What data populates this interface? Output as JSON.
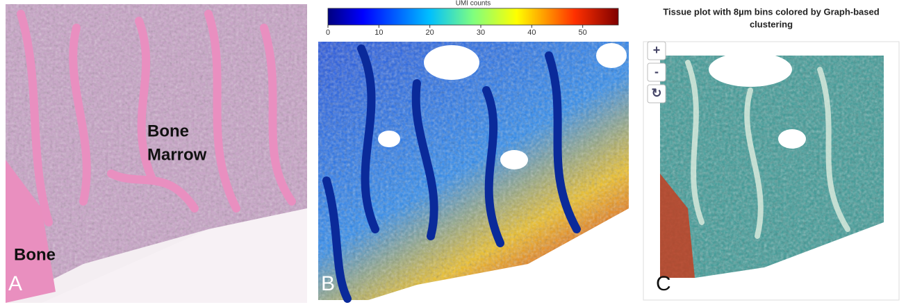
{
  "panel_a": {
    "letter": "A",
    "labels": [
      "Bone\nMarrow",
      "Bone"
    ]
  },
  "panel_b": {
    "letter": "B",
    "colorbar": {
      "title": "UMI counts",
      "range": [
        0,
        57
      ],
      "ticks": [
        0,
        10,
        20,
        30,
        40,
        50
      ]
    }
  },
  "panel_c": {
    "letter": "C",
    "title": "Tissue plot with 8µm bins colored by Graph-based clustering",
    "controls": [
      "+",
      "-",
      "↻"
    ]
  }
}
